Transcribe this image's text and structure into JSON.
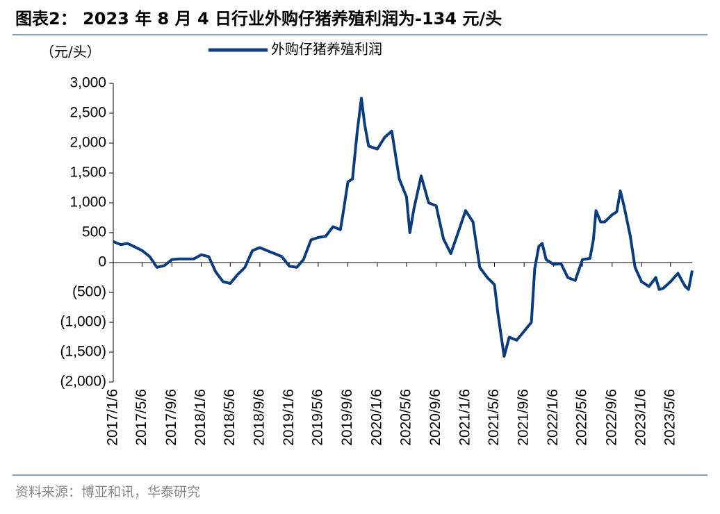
{
  "chart_data": {
    "type": "line",
    "title": "图表2： 2023 年 8 月 4 日行业外购仔猪养殖利润为-134 元/头",
    "y_label": "（元/头）",
    "source": "资料来源：博亚和讯，华泰研究",
    "x": [
      "2017/1/6",
      "2017/2/6",
      "2017/3/6",
      "2017/4/6",
      "2017/5/6",
      "2017/6/6",
      "2017/7/6",
      "2017/8/6",
      "2017/9/6",
      "2017/10/6",
      "2017/12/6",
      "2018/1/6",
      "2018/2/6",
      "2018/3/6",
      "2018/4/6",
      "2018/5/6",
      "2018/6/6",
      "2018/7/6",
      "2018/8/6",
      "2018/9/6",
      "2018/10/6",
      "2018/11/6",
      "2018/12/6",
      "2019/1/6",
      "2019/2/6",
      "2019/3/6",
      "2019/4/6",
      "2019/5/6",
      "2019/6/6",
      "2019/7/6",
      "2019/8/6",
      "2019/8/20",
      "2019/9/6",
      "2019/9/25",
      "2019/10/15",
      "2019/11/1",
      "2019/11/15",
      "2019/12/1",
      "2020/1/6",
      "2020/2/6",
      "2020/3/6",
      "2020/4/6",
      "2020/5/6",
      "2020/5/20",
      "2020/6/6",
      "2020/7/6",
      "2020/8/6",
      "2020/9/6",
      "2020/10/6",
      "2020/11/6",
      "2020/12/6",
      "2021/1/6",
      "2021/2/6",
      "2021/3/6",
      "2021/4/6",
      "2021/5/6",
      "2021/5/20",
      "2021/6/15",
      "2021/7/6",
      "2021/8/6",
      "2021/9/6",
      "2021/10/6",
      "2021/10/20",
      "2021/11/6",
      "2021/11/20",
      "2021/12/6",
      "2022/1/6",
      "2022/2/6",
      "2022/3/6",
      "2022/4/6",
      "2022/5/6",
      "2022/6/6",
      "2022/6/20",
      "2022/7/1",
      "2022/7/20",
      "2022/8/6",
      "2022/9/6",
      "2022/9/25",
      "2022/10/10",
      "2022/10/25",
      "2022/11/20",
      "2022/12/10",
      "2023/1/6",
      "2023/2/6",
      "2023/3/6",
      "2023/3/20",
      "2023/4/6",
      "2023/5/6",
      "2023/6/6",
      "2023/7/6",
      "2023/7/20",
      "2023/8/4"
    ],
    "series": [
      {
        "name": "外购仔猪养殖利润",
        "color": "#0b3c7d",
        "values": [
          350,
          300,
          320,
          260,
          200,
          100,
          -80,
          -50,
          50,
          60,
          60,
          130,
          100,
          -150,
          -320,
          -350,
          -200,
          -80,
          200,
          250,
          200,
          150,
          100,
          -60,
          -80,
          50,
          380,
          420,
          440,
          600,
          550,
          900,
          1350,
          1400,
          2200,
          2750,
          2300,
          1950,
          1900,
          2100,
          2200,
          1400,
          1100,
          500,
          900,
          1450,
          1000,
          950,
          400,
          150,
          500,
          870,
          680,
          -80,
          -250,
          -370,
          -850,
          -1570,
          -1250,
          -1300,
          -1150,
          -1000,
          -100,
          270,
          320,
          50,
          -30,
          -20,
          -250,
          -300,
          50,
          70,
          380,
          870,
          680,
          680,
          800,
          850,
          1200,
          950,
          450,
          -80,
          -320,
          -400,
          -250,
          -450,
          -430,
          -320,
          -180,
          -400,
          -450,
          -134
        ]
      }
    ],
    "xlim": [
      "2017/1/6",
      "2023/8/4"
    ],
    "xticks": [
      "2017/1/6",
      "2017/5/6",
      "2017/9/6",
      "2018/1/6",
      "2018/5/6",
      "2018/9/6",
      "2019/1/6",
      "2019/5/6",
      "2019/9/6",
      "2020/1/6",
      "2020/5/6",
      "2020/9/6",
      "2021/1/6",
      "2021/5/6",
      "2021/9/6",
      "2022/1/6",
      "2022/5/6",
      "2022/9/6",
      "2023/1/6",
      "2023/5/6"
    ],
    "ylim": [
      -2000,
      3000
    ],
    "yticks": [
      {
        "value": 3000,
        "label": "3,000"
      },
      {
        "value": 2500,
        "label": "2,500"
      },
      {
        "value": 2000,
        "label": "2,000"
      },
      {
        "value": 1500,
        "label": "1,500"
      },
      {
        "value": 1000,
        "label": "1,000"
      },
      500,
      0,
      {
        "value": -500,
        "label": "(500)"
      },
      {
        "value": -1000,
        "label": "(1,000)"
      },
      {
        "value": -1500,
        "label": "(1,500)"
      },
      {
        "value": -2000,
        "label": "(2,000)"
      }
    ],
    "legend": "top"
  }
}
